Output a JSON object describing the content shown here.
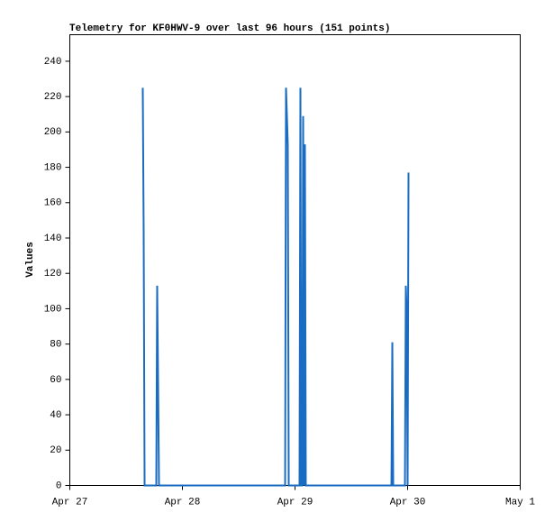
{
  "chart_data": {
    "type": "line",
    "title": "Telemetry for KF0HWV-9 over last 96 hours (151 points)",
    "y_label": "Values",
    "color": "#1a6cc2",
    "x": [
      15.55,
      15.74,
      15.94,
      18.43,
      18.62,
      18.82,
      19.01,
      45.89,
      46.08,
      46.46,
      46.66,
      48.96,
      49.15,
      49.34,
      49.54,
      49.73,
      49.92,
      50.11,
      50.3,
      68.55,
      68.74,
      68.93,
      71.43,
      71.62,
      71.81,
      72.0,
      72.19
    ],
    "values": [
      225,
      145,
      0,
      0,
      113,
      57,
      0,
      0,
      225,
      193,
      0,
      0,
      225,
      0,
      0,
      209,
      0,
      193,
      0,
      0,
      81,
      0,
      0,
      113,
      97,
      0,
      177
    ],
    "xlim": [
      0,
      96
    ],
    "xticks": [
      {
        "value": 0,
        "label": "Apr 27"
      },
      {
        "value": 24,
        "label": "Apr 28"
      },
      {
        "value": 48,
        "label": "Apr 29"
      },
      {
        "value": 72,
        "label": "Apr 30"
      },
      {
        "value": 96,
        "label": "May 1"
      }
    ],
    "ylim": [
      0,
      255
    ],
    "yticks": [
      0,
      20,
      40,
      60,
      80,
      100,
      120,
      140,
      160,
      180,
      200,
      220,
      240
    ]
  }
}
